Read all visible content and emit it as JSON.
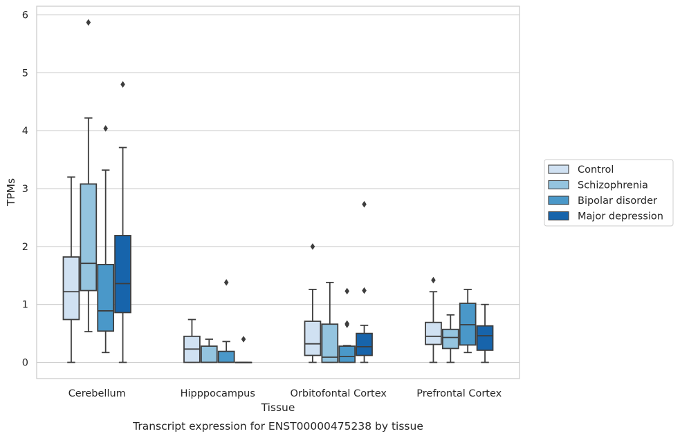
{
  "caption": "Transcript expression for ENST00000475238 by tissue",
  "chart_data": {
    "type": "box",
    "xlabel": "Tissue",
    "ylabel": "TPMs",
    "ylim": [
      -0.28,
      6.15
    ],
    "yticks": [
      0,
      1,
      2,
      3,
      4,
      5,
      6
    ],
    "grid": "horizontal",
    "legend_position": "right",
    "categories": [
      "Cerebellum",
      "Hipppocampus",
      "Orbitofontal Cortex",
      "Prefrontal Cortex"
    ],
    "series": [
      {
        "name": "Control",
        "color": "#d0e1f2",
        "boxes": [
          {
            "q1": 0.74,
            "median": 1.22,
            "q3": 1.82,
            "whisker_low": 0.0,
            "whisker_high": 3.2,
            "outliers": []
          },
          {
            "q1": 0.0,
            "median": 0.23,
            "q3": 0.45,
            "whisker_low": 0.0,
            "whisker_high": 0.74,
            "outliers": []
          },
          {
            "q1": 0.12,
            "median": 0.32,
            "q3": 0.71,
            "whisker_low": 0.0,
            "whisker_high": 1.26,
            "outliers": [
              2.0
            ]
          },
          {
            "q1": 0.31,
            "median": 0.45,
            "q3": 0.69,
            "whisker_low": 0.0,
            "whisker_high": 1.22,
            "outliers": [
              1.42
            ]
          }
        ]
      },
      {
        "name": "Schizophrenia",
        "color": "#94c4df",
        "boxes": [
          {
            "q1": 1.24,
            "median": 1.71,
            "q3": 3.08,
            "whisker_low": 0.53,
            "whisker_high": 4.22,
            "outliers": [
              5.87
            ]
          },
          {
            "q1": 0.0,
            "median": 0.0,
            "q3": 0.28,
            "whisker_low": 0.0,
            "whisker_high": 0.4,
            "outliers": []
          },
          {
            "q1": 0.0,
            "median": 0.09,
            "q3": 0.66,
            "whisker_low": 0.0,
            "whisker_high": 1.38,
            "outliers": []
          },
          {
            "q1": 0.24,
            "median": 0.43,
            "q3": 0.57,
            "whisker_low": 0.0,
            "whisker_high": 0.82,
            "outliers": []
          }
        ]
      },
      {
        "name": "Bipolar disorder",
        "color": "#4a98c9",
        "boxes": [
          {
            "q1": 0.54,
            "median": 0.89,
            "q3": 1.69,
            "whisker_low": 0.17,
            "whisker_high": 3.32,
            "outliers": [
              4.04
            ]
          },
          {
            "q1": 0.0,
            "median": 0.0,
            "q3": 0.19,
            "whisker_low": 0.0,
            "whisker_high": 0.36,
            "outliers": [
              1.38
            ]
          },
          {
            "q1": 0.0,
            "median": 0.1,
            "q3": 0.28,
            "whisker_low": 0.0,
            "whisker_high": 0.29,
            "outliers": [
              0.65,
              0.67,
              1.23
            ]
          },
          {
            "q1": 0.3,
            "median": 0.65,
            "q3": 1.02,
            "whisker_low": 0.17,
            "whisker_high": 1.26,
            "outliers": []
          }
        ]
      },
      {
        "name": "Major depression",
        "color": "#1764ab",
        "boxes": [
          {
            "q1": 0.86,
            "median": 1.36,
            "q3": 2.19,
            "whisker_low": 0.0,
            "whisker_high": 3.71,
            "outliers": [
              4.8
            ]
          },
          {
            "q1": 0.0,
            "median": 0.0,
            "q3": 0.0,
            "whisker_low": 0.0,
            "whisker_high": 0.0,
            "outliers": [
              0.4
            ]
          },
          {
            "q1": 0.12,
            "median": 0.27,
            "q3": 0.5,
            "whisker_low": 0.0,
            "whisker_high": 0.64,
            "outliers": [
              1.24,
              2.73
            ]
          },
          {
            "q1": 0.21,
            "median": 0.46,
            "q3": 0.63,
            "whisker_low": 0.0,
            "whisker_high": 1.0,
            "outliers": []
          }
        ]
      }
    ]
  }
}
